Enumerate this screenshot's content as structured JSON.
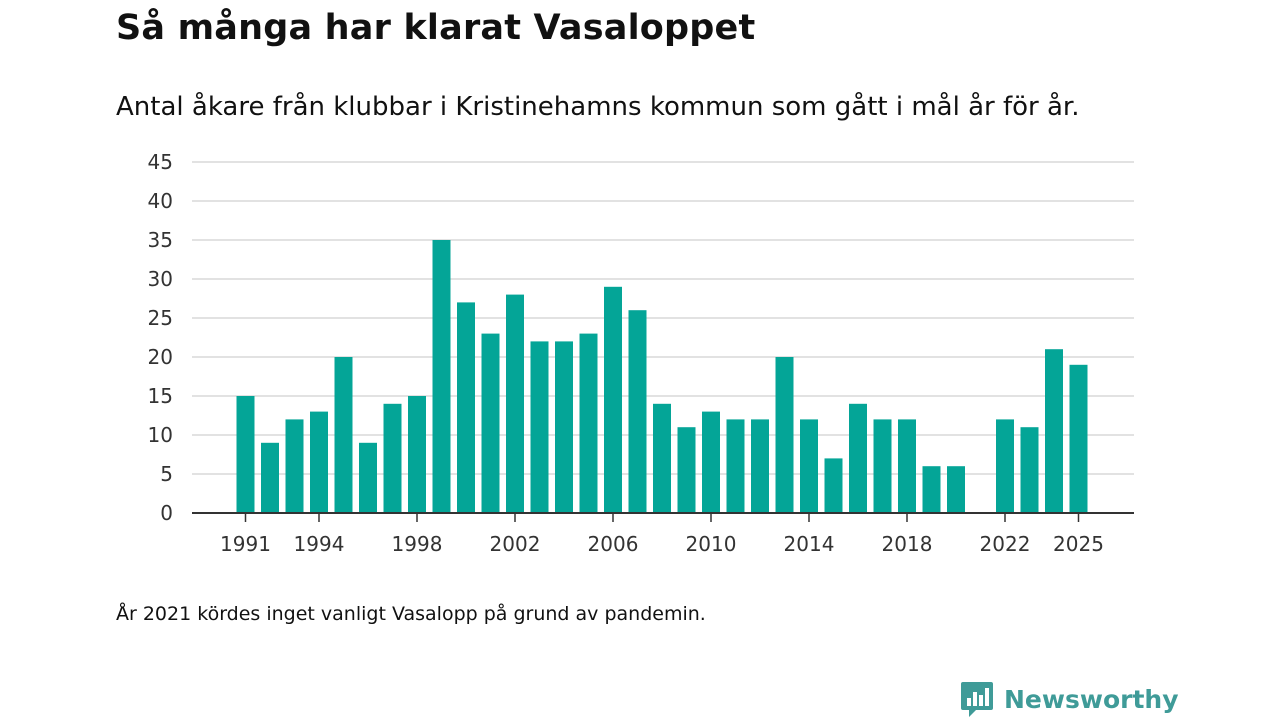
{
  "header": {
    "title": "Så många har klarat Vasaloppet",
    "subtitle": "Antal åkare från klubbar i Kristinehamns kommun som gått i mål år för år."
  },
  "footer": {
    "note": "År 2021 kördes inget vanligt Vasalopp på grund av pandemin.",
    "brand": "Newsworthy"
  },
  "colors": {
    "bar": "#04a597",
    "grid": "#d9d9d9",
    "axis": "#333333",
    "brand": "#3f9b98"
  },
  "chart_data": {
    "type": "bar",
    "title": "Så många har klarat Vasaloppet",
    "subtitle": "Antal åkare från klubbar i Kristinehamns kommun som gått i mål år för år.",
    "xlabel": "",
    "ylabel": "",
    "ylim": [
      0,
      45
    ],
    "yticks": [
      0,
      5,
      10,
      15,
      20,
      25,
      30,
      35,
      40,
      45
    ],
    "xtick_labels": [
      "1991",
      "1994",
      "1998",
      "2002",
      "2006",
      "2010",
      "2014",
      "2018",
      "2022",
      "2025"
    ],
    "grid": true,
    "categories": [
      1991,
      1992,
      1993,
      1994,
      1995,
      1996,
      1997,
      1998,
      1999,
      2000,
      2001,
      2002,
      2003,
      2004,
      2005,
      2006,
      2007,
      2008,
      2009,
      2010,
      2011,
      2012,
      2013,
      2014,
      2015,
      2016,
      2017,
      2018,
      2019,
      2020,
      2021,
      2022,
      2023,
      2024,
      2025
    ],
    "values": [
      15,
      9,
      12,
      13,
      20,
      9,
      14,
      15,
      35,
      27,
      23,
      28,
      22,
      22,
      23,
      29,
      26,
      14,
      11,
      13,
      12,
      12,
      20,
      12,
      7,
      14,
      12,
      12,
      6,
      6,
      null,
      12,
      11,
      21,
      19
    ]
  }
}
